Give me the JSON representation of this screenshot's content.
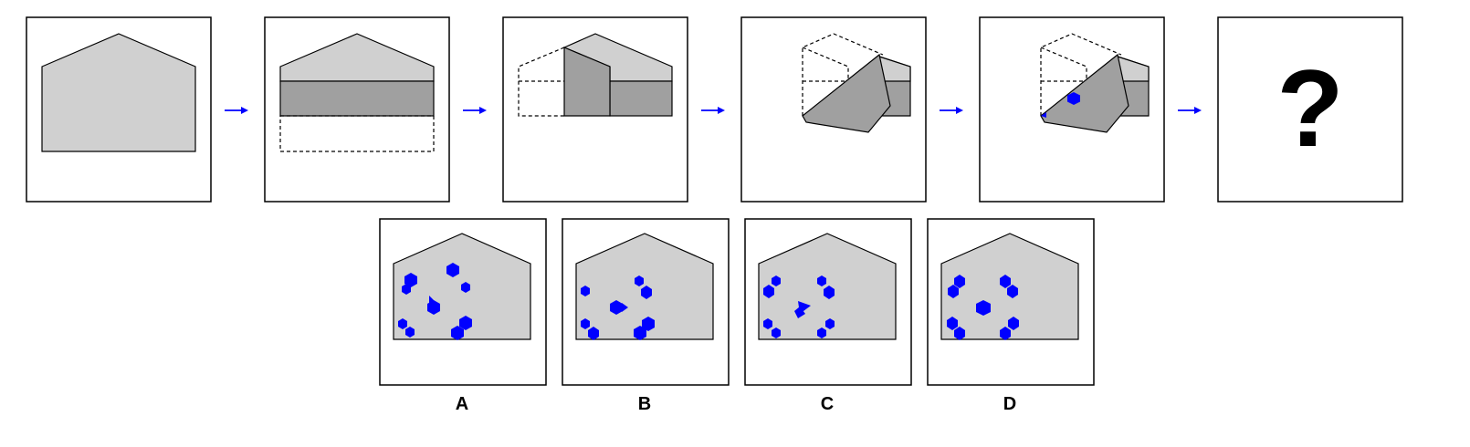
{
  "question_mark": "?",
  "options": [
    {
      "label": "A"
    },
    {
      "label": "B"
    },
    {
      "label": "C"
    },
    {
      "label": "D"
    }
  ],
  "colors": {
    "light_gray": "#d0d0d0",
    "dark_gray": "#a0a0a0",
    "blue": "#0000ff",
    "border": "#000000",
    "arrow": "#0000ff"
  },
  "icons": {
    "arrow": "right-arrow-icon",
    "fold_shape": "pentagon-house-shape",
    "hole": "hexagon-hole-shape"
  }
}
